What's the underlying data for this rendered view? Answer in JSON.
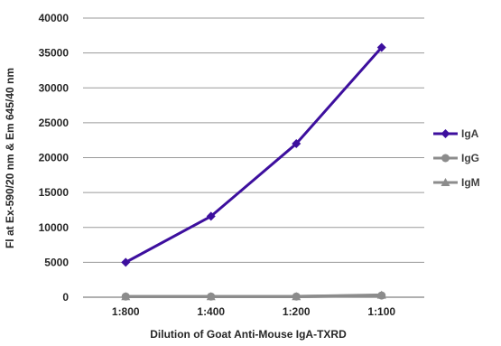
{
  "chart_data": {
    "type": "line",
    "categories": [
      "1:800",
      "1:400",
      "1:200",
      "1:100"
    ],
    "series": [
      {
        "name": "IgA",
        "values": [
          5000,
          11600,
          22000,
          35800
        ],
        "color": "#3d0f9e",
        "marker": "diamond"
      },
      {
        "name": "IgG",
        "values": [
          100,
          100,
          100,
          250
        ],
        "color": "#8c8c8c",
        "marker": "circle"
      },
      {
        "name": "IgM",
        "values": [
          100,
          100,
          100,
          300
        ],
        "color": "#8c8c8c",
        "marker": "triangle"
      }
    ],
    "xlabel": "Dilution of Goat Anti-Mouse IgA-TXRD",
    "ylabel": "Fl at Ex-590/20 nm & Em 645/40 nm",
    "ylim": [
      0,
      40000
    ],
    "yticks": [
      0,
      5000,
      10000,
      15000,
      20000,
      25000,
      30000,
      35000,
      40000
    ],
    "grid": "horizontal",
    "legend_position": "right"
  }
}
